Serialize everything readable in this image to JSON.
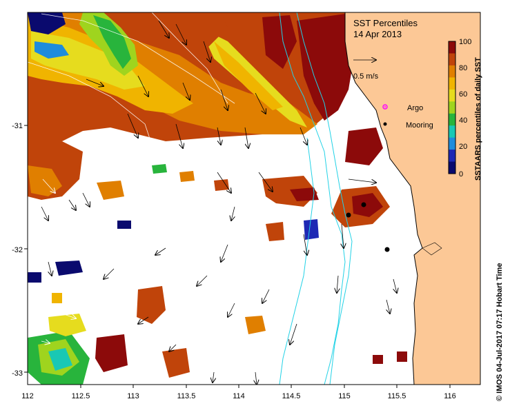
{
  "title": {
    "line1": "SST Percentiles",
    "line2": "14 Apr 2013"
  },
  "colorbar": {
    "label": "SSTAARS percentiles of daily SST",
    "ticks": [
      "100",
      "80",
      "60",
      "40",
      "20",
      "0"
    ],
    "colors": [
      "#8c0a0a",
      "#c0440a",
      "#e07f00",
      "#f0b400",
      "#e6dc1e",
      "#9fd41e",
      "#28b43c",
      "#19c8b4",
      "#1e8cdc",
      "#1e28b4",
      "#0a0a6e"
    ]
  },
  "legend": {
    "speed_label": "0.5 m/s",
    "argo_label": "Argo",
    "mooring_label": "Mooring"
  },
  "axes": {
    "x_ticks": [
      "112",
      "112.5",
      "113",
      "113.5",
      "114",
      "114.5",
      "115",
      "115.5",
      "116"
    ],
    "y_ticks": [
      "-31",
      "-32",
      "-33"
    ]
  },
  "footer": {
    "credit": "© IMOS 04-Jul-2017 07:17 Hobart Time"
  },
  "colors": {
    "land": "#fcc896",
    "contour": "#22d2e6",
    "frame": "#000000"
  }
}
